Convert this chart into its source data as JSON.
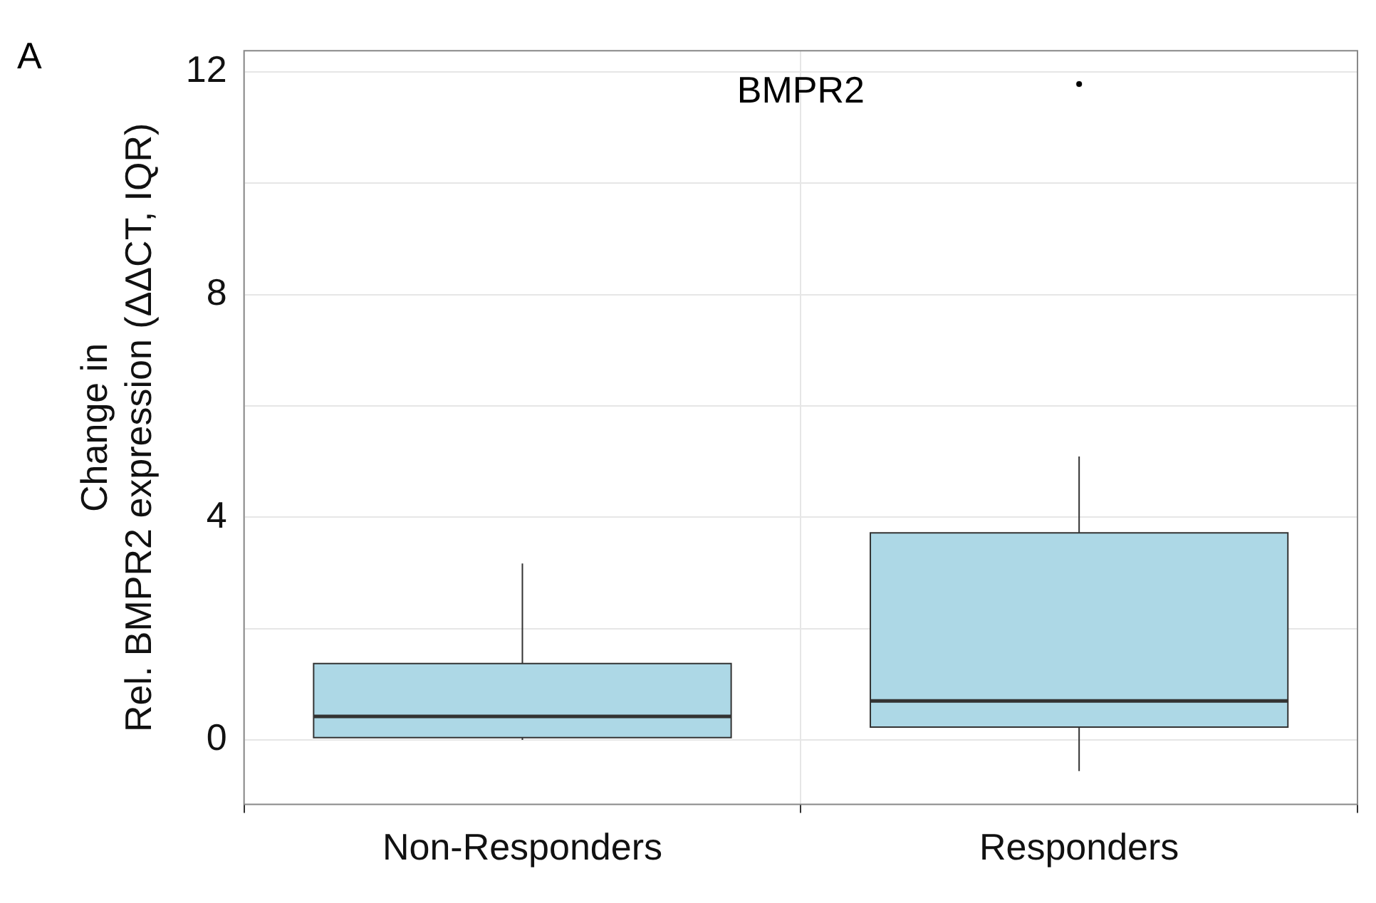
{
  "chart_data": {
    "type": "box",
    "title": "BMPR2",
    "ylabel": "Change in\nRel. BMPR2 expression (ΔΔCT, IQR)",
    "annotations": [
      "A"
    ],
    "categories": [
      "Non-Responders",
      "Responders"
    ],
    "series": [
      {
        "color": "#add8e6",
        "boxes": [
          {
            "low": 0,
            "q1": 0.04,
            "median": 0.42,
            "q3": 1.37,
            "high": 3.17
          },
          {
            "low": -0.56,
            "q1": 0.23,
            "median": 0.7,
            "q3": 3.72,
            "high": 5.09,
            "outliers": [
              11.78
            ]
          }
        ]
      }
    ],
    "ylim": [
      -1.16,
      12.38
    ],
    "yticks": [
      0,
      {
        "value": 2,
        "label": null
      },
      4,
      {
        "value": 6,
        "label": null
      },
      8,
      {
        "value": 10,
        "label": null
      },
      12
    ],
    "grid": true,
    "legend": false
  }
}
